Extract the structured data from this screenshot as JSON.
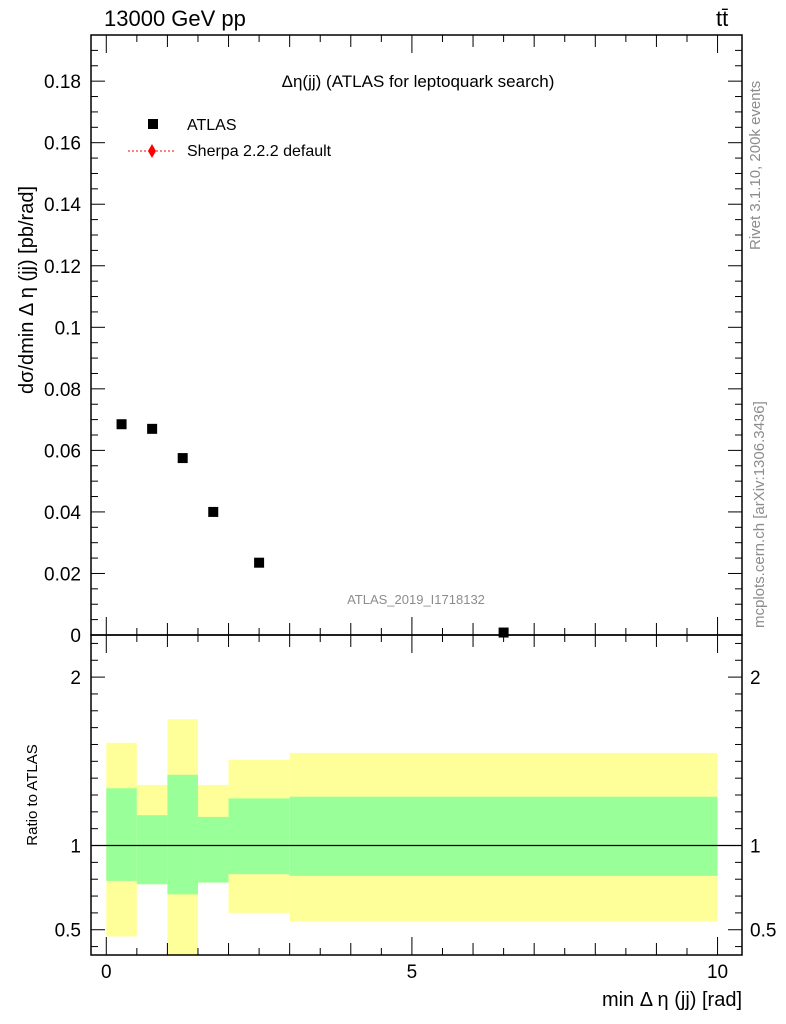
{
  "header": {
    "left": "13000 GeV pp",
    "right": "tt̄"
  },
  "side_labels": {
    "rivet": "Rivet 3.1.10,  200k events",
    "mcplots": "mcplots.cern.ch [arXiv:1306.3436]"
  },
  "colors": {
    "data_marker": "#000000",
    "mc_line": "#ff0000",
    "band_outer": "#ffff99",
    "band_inner": "#99ff99"
  },
  "chart_data": [
    {
      "type": "scatter",
      "panel": "main",
      "title": "Δη(jj) (ATLAS for leptoquark search)",
      "watermark": "ATLAS_2019_I1718132",
      "ylabel": "dσ/dmin Δ η (jj) [pb/rad]",
      "xlabel": "",
      "xlim": [
        -0.25,
        10.4
      ],
      "ylim": [
        0,
        0.195
      ],
      "y_ticks": [
        0.02,
        0.04,
        0.06,
        0.08,
        0.1,
        0.12,
        0.14,
        0.16,
        0.18
      ],
      "y_tick_labels": [
        "0.02",
        "0.04",
        "0.06",
        "0.08",
        "0.1",
        "0.12",
        "0.14",
        "0.16",
        "0.18"
      ],
      "y_zero_label": "0",
      "legend": {
        "placement": "top-left",
        "entries": [
          "ATLAS",
          "Sherpa 2.2.2 default"
        ]
      },
      "series": [
        {
          "name": "ATLAS",
          "marker": "square",
          "x": [
            0.25,
            0.75,
            1.25,
            1.75,
            2.5,
            6.5
          ],
          "y": [
            0.0685,
            0.067,
            0.0575,
            0.04,
            0.0235,
            0.0008
          ]
        },
        {
          "name": "Sherpa 2.2.2 default",
          "marker": "diamond",
          "x": [],
          "y": []
        }
      ]
    },
    {
      "type": "area",
      "panel": "ratio",
      "ylabel": "Ratio to ATLAS",
      "xlabel": "min Δ η (jj) [rad]",
      "xlim": [
        -0.25,
        10.4
      ],
      "ylim": [
        0.35,
        2.25
      ],
      "y_ticks": [
        0.5,
        1,
        2
      ],
      "y_tick_labels": [
        "0.5",
        "1",
        "2"
      ],
      "x_ticks": [
        0,
        5,
        10
      ],
      "x_tick_labels": [
        "0",
        "5",
        "10"
      ],
      "reference_line": 1,
      "bins": [
        {
          "x_lo": 0.0,
          "x_hi": 0.5,
          "inner": [
            0.79,
            1.34
          ],
          "outer": [
            0.46,
            1.61
          ]
        },
        {
          "x_lo": 0.5,
          "x_hi": 1.0,
          "inner": [
            0.77,
            1.18
          ],
          "outer": [
            0.77,
            1.36
          ]
        },
        {
          "x_lo": 1.0,
          "x_hi": 1.5,
          "inner": [
            0.71,
            1.42
          ],
          "outer": [
            0.35,
            1.75
          ]
        },
        {
          "x_lo": 1.5,
          "x_hi": 2.0,
          "inner": [
            0.78,
            1.17
          ],
          "outer": [
            0.78,
            1.36
          ]
        },
        {
          "x_lo": 2.0,
          "x_hi": 3.0,
          "inner": [
            0.83,
            1.28
          ],
          "outer": [
            0.6,
            1.51
          ]
        },
        {
          "x_lo": 3.0,
          "x_hi": 10.0,
          "inner": [
            0.82,
            1.29
          ],
          "outer": [
            0.55,
            1.55
          ]
        }
      ]
    }
  ]
}
